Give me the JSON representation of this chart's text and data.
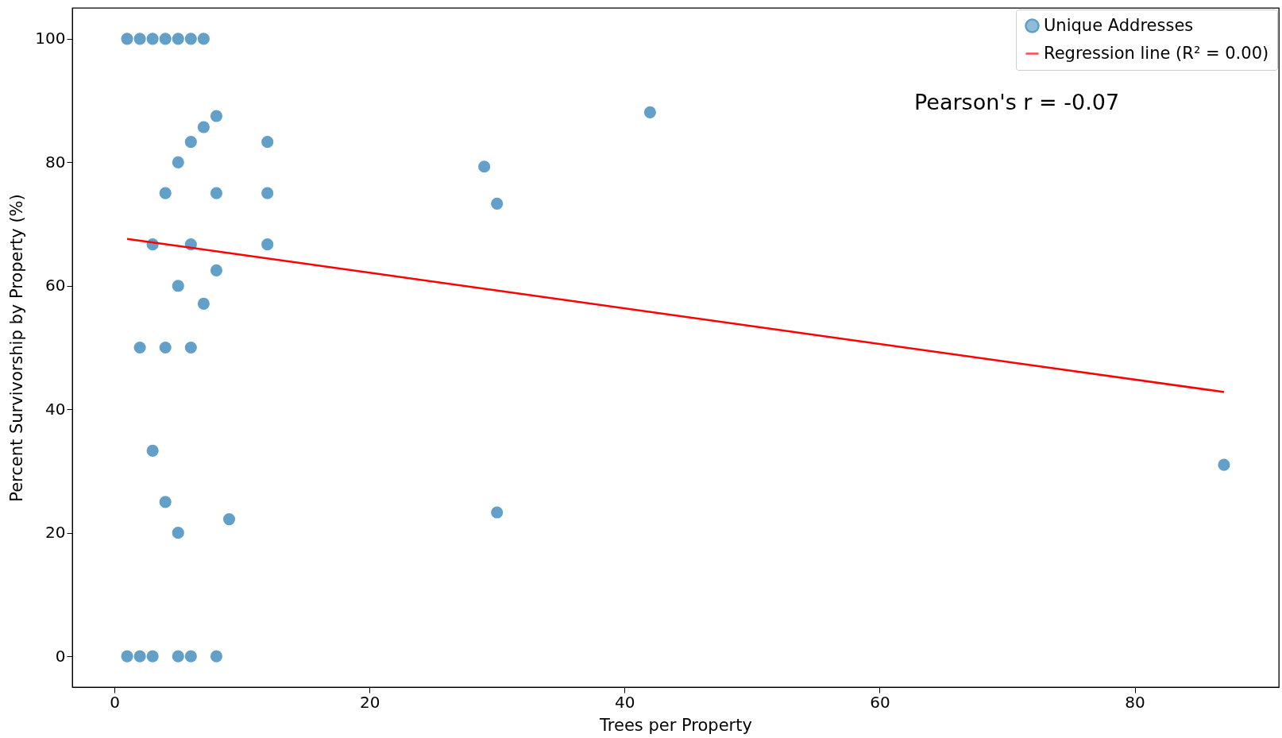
{
  "chart_data": {
    "type": "scatter",
    "xlabel": "Trees per Property",
    "ylabel": "Percent Survivorship by Property (%)",
    "xlim": [
      -3.3,
      91.3
    ],
    "ylim": [
      -5,
      105
    ],
    "xticks": [
      0,
      20,
      40,
      60,
      80
    ],
    "yticks": [
      0,
      20,
      40,
      60,
      80,
      100
    ],
    "grid": false,
    "legend": "top right",
    "annotations": [
      "Pearson's r = -0.07"
    ],
    "series": [
      {
        "name": "Unique Addresses",
        "marker": "circle",
        "color": "#1f77b4",
        "x": [
          1,
          2,
          3,
          4,
          5,
          6,
          7,
          1,
          2,
          3,
          5,
          6,
          8,
          8,
          7,
          6,
          5,
          4,
          8,
          12,
          12,
          12,
          3,
          6,
          8,
          5,
          7,
          2,
          4,
          6,
          3,
          4,
          5,
          9,
          29,
          30,
          30,
          42,
          87
        ],
        "values": [
          100,
          100,
          100,
          100,
          100,
          100,
          100,
          0,
          0,
          0,
          0,
          0,
          0,
          87.5,
          85.7,
          83.3,
          80,
          75,
          75,
          83.3,
          75,
          66.7,
          66.7,
          66.7,
          62.5,
          60,
          57.1,
          50,
          50,
          50,
          33.3,
          25,
          20,
          22.2,
          79.3,
          73.3,
          23.3,
          88.1,
          31.0
        ]
      },
      {
        "name": "Regression line (R² = 0.00)",
        "type": "line",
        "color": "#ff0000",
        "line_style": "solid",
        "x": [
          1,
          87
        ],
        "values": [
          67.6,
          42.8
        ]
      }
    ]
  }
}
